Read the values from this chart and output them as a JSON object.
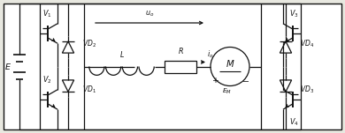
{
  "bg_color": "#e8e8e0",
  "line_color": "#111111",
  "figsize": [
    3.9,
    1.51
  ],
  "dpi": 100,
  "lw": 0.9,
  "fs": 5.8
}
